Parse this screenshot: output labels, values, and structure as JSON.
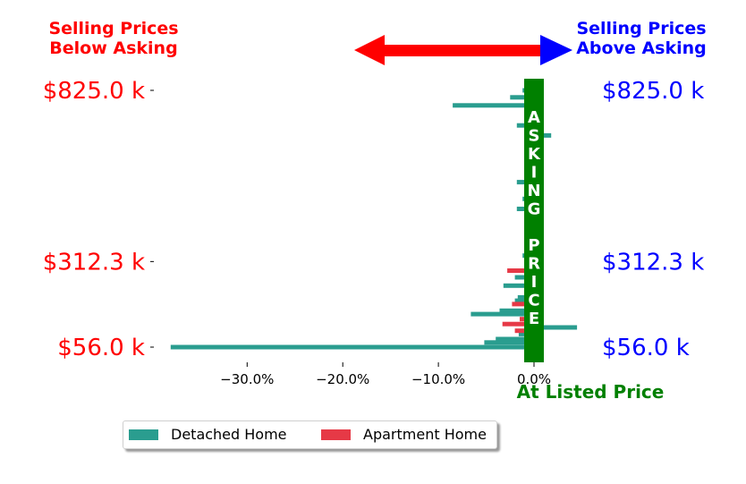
{
  "header": {
    "below_asking": "Selling Prices\nBelow Asking",
    "above_asking": "Selling Prices\nAbove Asking",
    "at_listed": "At Listed Price",
    "asking_word": "ASKING",
    "price_word": "PRICE"
  },
  "colors": {
    "detached": "#2a9d8f",
    "apartment": "#e63946",
    "below": "#ff0000",
    "above": "#0000ff",
    "asking_band": "#008000"
  },
  "legend": {
    "detached_label": "Detached Home",
    "apartment_label": "Apartment Home"
  },
  "chart_data": {
    "type": "bar",
    "orientation": "horizontal",
    "xlim": [
      -0.39,
      0.05
    ],
    "x_ticks": [
      -0.3,
      -0.2,
      -0.1,
      0.0
    ],
    "x_tick_labels": [
      "−30.0%",
      "−20.0%",
      "−10.0%",
      "0.0%"
    ],
    "y_tick_labels": [
      "$825.0 k",
      "$312.3 k",
      "$56.0 k"
    ],
    "series": [
      {
        "name": "Detached Home",
        "bars": [
          {
            "price": 825.0,
            "value": -0.012
          },
          {
            "price": 804.0,
            "value": -0.025
          },
          {
            "price": 780.0,
            "value": -0.085
          },
          {
            "price": 720.0,
            "value": -0.018
          },
          {
            "price": 690.0,
            "value": 0.018
          },
          {
            "price": 550.0,
            "value": -0.018
          },
          {
            "price": 500.0,
            "value": -0.012
          },
          {
            "price": 470.0,
            "value": -0.018
          },
          {
            "price": 330.0,
            "value": -0.012
          },
          {
            "price": 265.0,
            "value": -0.02
          },
          {
            "price": 240.0,
            "value": -0.032
          },
          {
            "price": 205.0,
            "value": -0.017
          },
          {
            "price": 195.0,
            "value": -0.02
          },
          {
            "price": 165.0,
            "value": -0.036
          },
          {
            "price": 155.0,
            "value": -0.066
          },
          {
            "price": 115.0,
            "value": 0.045
          },
          {
            "price": 95.0,
            "value": -0.016
          },
          {
            "price": 80.0,
            "value": -0.04
          },
          {
            "price": 70.0,
            "value": -0.052
          },
          {
            "price": 56.0,
            "value": -0.38
          }
        ]
      },
      {
        "name": "Apartment Home",
        "bars": [
          {
            "price": 285.0,
            "value": -0.028
          },
          {
            "price": 185.0,
            "value": -0.023
          },
          {
            "price": 140.0,
            "value": -0.015
          },
          {
            "price": 125.0,
            "value": -0.033
          },
          {
            "price": 105.0,
            "value": -0.02
          }
        ]
      }
    ]
  }
}
